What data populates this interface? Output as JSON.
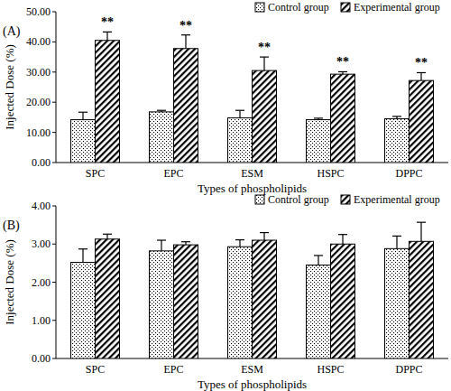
{
  "chart_data": [
    {
      "type": "bar",
      "title": "(A)",
      "x_label": "Types of phospholipids",
      "y_label": "Injected Dose (%)",
      "categories": [
        "SPC",
        "EPC",
        "ESM",
        "HSPC",
        "DPPC"
      ],
      "series": [
        {
          "name": "Control group",
          "color": "#000000",
          "values": [
            14.2,
            16.8,
            14.8,
            14.2,
            14.5
          ],
          "errors": [
            2.5,
            0.5,
            2.5,
            0.5,
            0.8
          ]
        },
        {
          "name": "Experimental group",
          "color": "#000000",
          "values": [
            40.5,
            37.8,
            30.5,
            29.3,
            27.2
          ],
          "errors": [
            2.8,
            4.5,
            4.5,
            0.8,
            2.6
          ]
        }
      ],
      "annotations": [
        "**",
        "**",
        "**",
        "**",
        "**"
      ],
      "ylim": [
        0,
        50
      ],
      "yticks": [
        {
          "value": 0,
          "label": "0.00"
        },
        {
          "value": 10,
          "label": "10.00"
        },
        {
          "value": 20,
          "label": "20.00"
        },
        {
          "value": 30,
          "label": "30.00"
        },
        {
          "value": 40,
          "label": "40.00"
        },
        {
          "value": 50,
          "label": "50.00"
        }
      ],
      "legend": "top-right",
      "grid": false
    },
    {
      "type": "bar",
      "title": "(B)",
      "x_label": "Types of phospholipids",
      "y_label": "Injected Dose (%)",
      "categories": [
        "SPC",
        "EPC",
        "ESM",
        "HSPC",
        "DPPC"
      ],
      "series": [
        {
          "name": "Control group",
          "color": "#000000",
          "values": [
            2.52,
            2.82,
            2.93,
            2.45,
            2.88
          ],
          "errors": [
            0.35,
            0.28,
            0.18,
            0.25,
            0.33
          ]
        },
        {
          "name": "Experimental group",
          "color": "#000000",
          "values": [
            3.13,
            2.98,
            3.1,
            3.0,
            3.07
          ],
          "errors": [
            0.13,
            0.08,
            0.2,
            0.25,
            0.5
          ]
        }
      ],
      "ylim": [
        0,
        4
      ],
      "yticks": [
        {
          "value": 0,
          "label": "0.00"
        },
        {
          "value": 1,
          "label": "1.00"
        },
        {
          "value": 2,
          "label": "2.00"
        },
        {
          "value": 3,
          "label": "3.00"
        },
        {
          "value": 4,
          "label": "4.00"
        }
      ],
      "legend": "top-right",
      "grid": false
    }
  ]
}
